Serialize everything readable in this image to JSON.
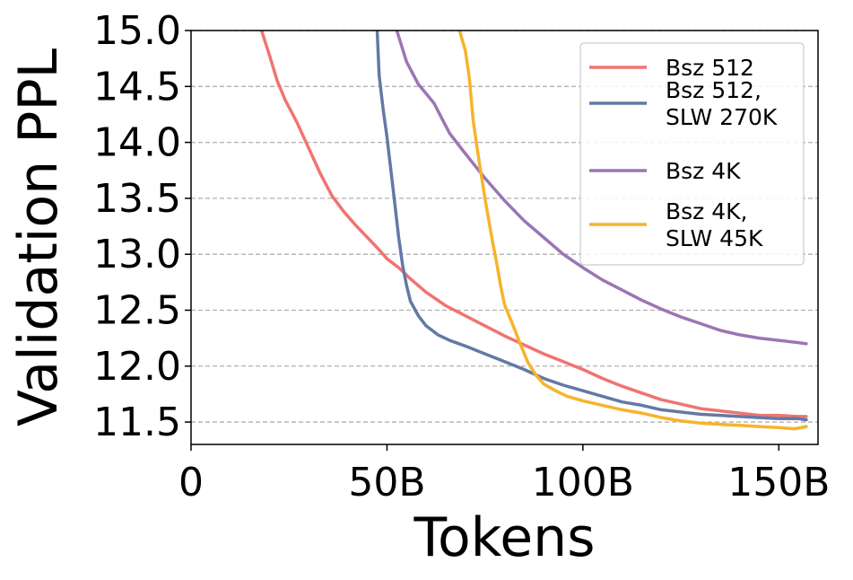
{
  "chart_data": {
    "type": "line",
    "xlabel": "Tokens",
    "ylabel": "Validation PPL",
    "xlim": [
      0,
      160
    ],
    "ylim": [
      11.3,
      15.0
    ],
    "x_ticks": [
      {
        "value": 0,
        "label": "0"
      },
      {
        "value": 50,
        "label": "50B"
      },
      {
        "value": 100,
        "label": "100B"
      },
      {
        "value": 150,
        "label": "150B"
      }
    ],
    "y_ticks": [
      {
        "value": 11.5,
        "label": "11.5"
      },
      {
        "value": 12.0,
        "label": "12.0"
      },
      {
        "value": 12.5,
        "label": "12.5"
      },
      {
        "value": 13.0,
        "label": "13.0"
      },
      {
        "value": 13.5,
        "label": "13.5"
      },
      {
        "value": 14.0,
        "label": "14.0"
      },
      {
        "value": 14.5,
        "label": "14.5"
      },
      {
        "value": 15.0,
        "label": "15.0"
      }
    ],
    "grid": {
      "y": true,
      "x": false,
      "style": "dashed"
    },
    "legend_position": "top-right",
    "series": [
      {
        "name": "Bsz 512",
        "color": "#f07470",
        "points": [
          [
            18,
            15.0
          ],
          [
            20,
            14.78
          ],
          [
            22,
            14.55
          ],
          [
            24,
            14.38
          ],
          [
            27,
            14.18
          ],
          [
            30,
            13.95
          ],
          [
            33,
            13.72
          ],
          [
            36,
            13.52
          ],
          [
            39,
            13.38
          ],
          [
            42,
            13.26
          ],
          [
            45,
            13.15
          ],
          [
            48,
            13.04
          ],
          [
            50,
            12.96
          ],
          [
            53,
            12.88
          ],
          [
            56,
            12.78
          ],
          [
            60,
            12.66
          ],
          [
            65,
            12.54
          ],
          [
            70,
            12.45
          ],
          [
            75,
            12.36
          ],
          [
            80,
            12.27
          ],
          [
            85,
            12.19
          ],
          [
            90,
            12.11
          ],
          [
            95,
            12.04
          ],
          [
            100,
            11.97
          ],
          [
            105,
            11.89
          ],
          [
            110,
            11.82
          ],
          [
            115,
            11.76
          ],
          [
            120,
            11.7
          ],
          [
            125,
            11.66
          ],
          [
            130,
            11.62
          ],
          [
            135,
            11.6
          ],
          [
            140,
            11.58
          ],
          [
            145,
            11.56
          ],
          [
            150,
            11.56
          ],
          [
            155,
            11.55
          ],
          [
            157,
            11.55
          ]
        ]
      },
      {
        "name": "Bsz 512,\nSLW 270K",
        "color": "#6379a5",
        "points": [
          [
            47.5,
            15.0
          ],
          [
            48,
            14.6
          ],
          [
            49,
            14.3
          ],
          [
            50,
            14.05
          ],
          [
            51,
            13.75
          ],
          [
            52,
            13.45
          ],
          [
            53,
            13.15
          ],
          [
            54,
            12.9
          ],
          [
            55,
            12.72
          ],
          [
            56,
            12.58
          ],
          [
            58,
            12.45
          ],
          [
            60,
            12.36
          ],
          [
            63,
            12.28
          ],
          [
            66,
            12.23
          ],
          [
            70,
            12.18
          ],
          [
            75,
            12.11
          ],
          [
            80,
            12.04
          ],
          [
            85,
            11.97
          ],
          [
            90,
            11.89
          ],
          [
            95,
            11.83
          ],
          [
            100,
            11.78
          ],
          [
            105,
            11.73
          ],
          [
            110,
            11.68
          ],
          [
            115,
            11.65
          ],
          [
            120,
            11.61
          ],
          [
            125,
            11.59
          ],
          [
            130,
            11.57
          ],
          [
            135,
            11.56
          ],
          [
            140,
            11.55
          ],
          [
            145,
            11.54
          ],
          [
            150,
            11.53
          ],
          [
            155,
            11.53
          ],
          [
            157,
            11.52
          ]
        ]
      },
      {
        "name": "Bsz 4K",
        "color": "#9a76b5",
        "points": [
          [
            52.5,
            15.0
          ],
          [
            55,
            14.72
          ],
          [
            58,
            14.52
          ],
          [
            62,
            14.35
          ],
          [
            66,
            14.08
          ],
          [
            70,
            13.9
          ],
          [
            75,
            13.68
          ],
          [
            80,
            13.48
          ],
          [
            85,
            13.3
          ],
          [
            90,
            13.15
          ],
          [
            95,
            13.0
          ],
          [
            100,
            12.88
          ],
          [
            105,
            12.77
          ],
          [
            110,
            12.68
          ],
          [
            115,
            12.59
          ],
          [
            120,
            12.51
          ],
          [
            125,
            12.44
          ],
          [
            130,
            12.38
          ],
          [
            135,
            12.32
          ],
          [
            140,
            12.28
          ],
          [
            145,
            12.25
          ],
          [
            150,
            12.23
          ],
          [
            155,
            12.21
          ],
          [
            157,
            12.2
          ]
        ]
      },
      {
        "name": "Bsz 4K,\nSLW 45K",
        "color": "#f7b32b",
        "points": [
          [
            68.5,
            15.0
          ],
          [
            70,
            14.82
          ],
          [
            71,
            14.58
          ],
          [
            72,
            14.2
          ],
          [
            73,
            13.95
          ],
          [
            74,
            13.72
          ],
          [
            75,
            13.5
          ],
          [
            76,
            13.3
          ],
          [
            77,
            13.1
          ],
          [
            78,
            12.92
          ],
          [
            79,
            12.72
          ],
          [
            80,
            12.55
          ],
          [
            82,
            12.38
          ],
          [
            84,
            12.2
          ],
          [
            86,
            12.03
          ],
          [
            88,
            11.92
          ],
          [
            90,
            11.84
          ],
          [
            93,
            11.78
          ],
          [
            96,
            11.73
          ],
          [
            100,
            11.69
          ],
          [
            105,
            11.65
          ],
          [
            110,
            11.61
          ],
          [
            115,
            11.58
          ],
          [
            120,
            11.54
          ],
          [
            125,
            11.51
          ],
          [
            130,
            11.49
          ],
          [
            135,
            11.48
          ],
          [
            140,
            11.47
          ],
          [
            145,
            11.46
          ],
          [
            150,
            11.45
          ],
          [
            154,
            11.44
          ],
          [
            157,
            11.46
          ]
        ]
      }
    ]
  }
}
